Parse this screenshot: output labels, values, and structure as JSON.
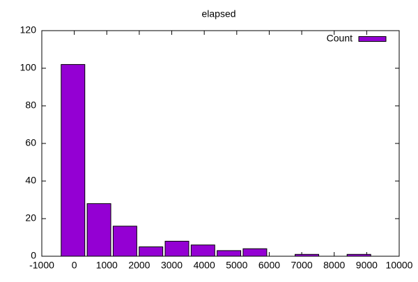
{
  "chart_data": {
    "type": "histogram",
    "title": "elapsed",
    "bins": [
      -440,
      360,
      1160,
      1960,
      2760,
      3560,
      4360,
      5160,
      5960,
      6760,
      7560,
      8360,
      9160
    ],
    "series": [
      {
        "name": "Count",
        "color": "#9400d3",
        "values": [
          102,
          28,
          16,
          5,
          8,
          6,
          3,
          4,
          0,
          1,
          0,
          1
        ]
      }
    ],
    "xlim": [
      -1000,
      10000
    ],
    "xticks": [
      -1000,
      0,
      1000,
      2000,
      3000,
      4000,
      5000,
      6000,
      7000,
      8000,
      9000,
      10000
    ],
    "ylim": [
      0,
      120
    ],
    "yticks": [
      0,
      20,
      40,
      60,
      80,
      100,
      120
    ],
    "grid": false,
    "legend": "top-right"
  }
}
